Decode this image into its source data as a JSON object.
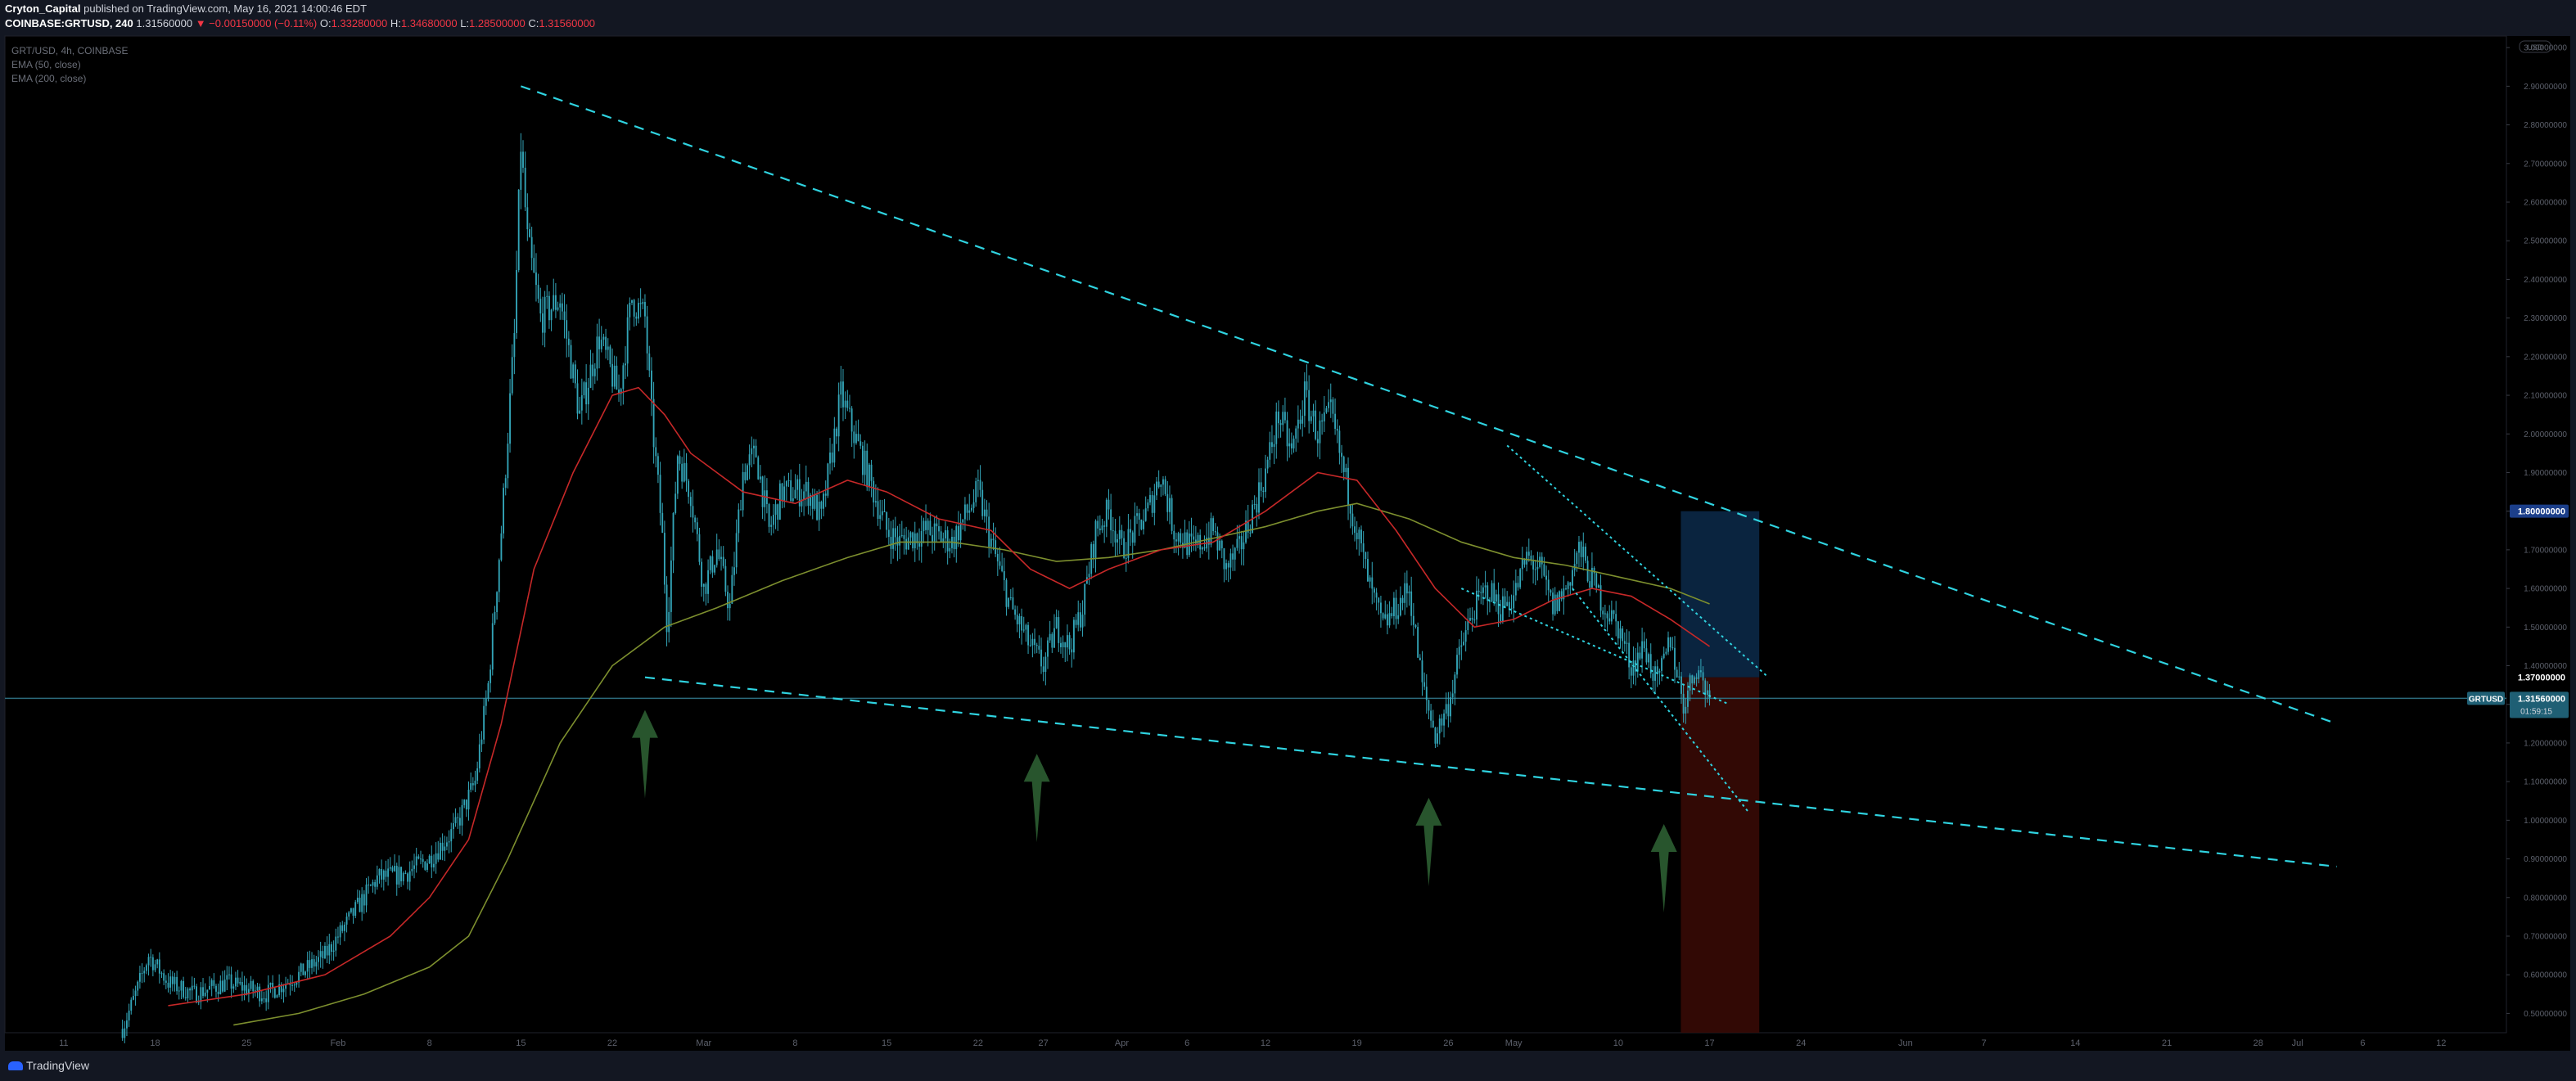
{
  "header": {
    "author": "Cryton_Capital",
    "published_text": "published on TradingView.com, May 16, 2021 14:00:46 EDT",
    "symbol": "COINBASE:GRTUSD, 240",
    "last_price": "1.31560000",
    "change": "▼ −0.00150000 (−0.11%)",
    "ohlc": [
      {
        "label": "O:",
        "value": "1.33280000"
      },
      {
        "label": "H:",
        "value": "1.34680000"
      },
      {
        "label": "L:",
        "value": "1.28500000"
      },
      {
        "label": "C:",
        "value": "1.31560000"
      }
    ]
  },
  "legend": {
    "symbol_line": "GRT/USD, 4h, COINBASE",
    "ema50": "EMA (50, close)",
    "ema200": "EMA (200, close)"
  },
  "footer": {
    "brand": "TradingView"
  },
  "colors": {
    "background": "#000000",
    "candle": "#33a5b8",
    "ema50": "#c62828",
    "ema200": "#7d8f2e",
    "trendline": "#2fd3e0",
    "arrow": "#2c5e32",
    "target_zone": "#0c2a4a",
    "stop_zone": "#3b0a06",
    "last_price_tag": "#1f5f74",
    "level_tag": "#1c3f8a"
  },
  "chart_data": {
    "type": "candlestick",
    "title": "GRT/USD, 4h, COINBASE",
    "xlabel": "",
    "ylabel": "",
    "x_tick_labels": [
      "11",
      "18",
      "25",
      "Feb",
      "8",
      "15",
      "22",
      "Mar",
      "8",
      "15",
      "22",
      "27",
      "Apr",
      "6",
      "12",
      "19",
      "26",
      "May",
      "10",
      "17",
      "24",
      "Jun",
      "7",
      "14",
      "21",
      "28",
      "Jul",
      "6",
      "12"
    ],
    "x_tick_positions_days": [
      0,
      7,
      14,
      21,
      28,
      35,
      42,
      49,
      56,
      63,
      70,
      75,
      81,
      86,
      92,
      99,
      106,
      111,
      119,
      126,
      133,
      141,
      147,
      154,
      161,
      168,
      171,
      176,
      182
    ],
    "y_tick_labels": [
      "0.50000000",
      "0.60000000",
      "0.70000000",
      "0.80000000",
      "0.90000000",
      "1.00000000",
      "1.10000000",
      "1.20000000",
      "1.30000000",
      "1.40000000",
      "1.50000000",
      "1.60000000",
      "1.70000000",
      "1.80000000",
      "1.90000000",
      "2.00000000",
      "2.10000000",
      "2.20000000",
      "2.30000000",
      "2.40000000",
      "2.50000000",
      "2.60000000",
      "2.70000000",
      "2.80000000",
      "2.90000000",
      "3.00000000"
    ],
    "ylim": [
      0.45,
      3.03
    ],
    "xlim_days": [
      -4.5,
      187
    ],
    "price_points": [
      [
        4.5,
        0.46
      ],
      [
        5.5,
        0.55
      ],
      [
        6.5,
        0.65
      ],
      [
        8,
        0.58
      ],
      [
        10,
        0.55
      ],
      [
        12.5,
        0.58
      ],
      [
        15.5,
        0.55
      ],
      [
        18,
        0.6
      ],
      [
        20,
        0.65
      ],
      [
        22,
        0.75
      ],
      [
        24,
        0.85
      ],
      [
        26,
        0.86
      ],
      [
        28,
        0.9
      ],
      [
        30,
        0.98
      ],
      [
        31.5,
        1.1
      ],
      [
        32.5,
        1.35
      ],
      [
        33.5,
        1.75
      ],
      [
        34.5,
        2.25
      ],
      [
        35,
        2.75
      ],
      [
        35.5,
        2.5
      ],
      [
        36.5,
        2.3
      ],
      [
        38,
        2.35
      ],
      [
        39.5,
        2.05
      ],
      [
        41,
        2.25
      ],
      [
        42.5,
        2.1
      ],
      [
        43.5,
        2.35
      ],
      [
        44.5,
        2.3
      ],
      [
        45,
        2.05
      ],
      [
        45.8,
        1.75
      ],
      [
        46.2,
        1.5
      ],
      [
        47,
        1.95
      ],
      [
        48,
        1.85
      ],
      [
        49,
        1.6
      ],
      [
        50,
        1.7
      ],
      [
        51,
        1.55
      ],
      [
        52,
        1.9
      ],
      [
        53,
        1.95
      ],
      [
        54,
        1.75
      ],
      [
        55,
        1.85
      ],
      [
        57,
        1.85
      ],
      [
        58,
        1.78
      ],
      [
        59.5,
        2.1
      ],
      [
        60.5,
        2.0
      ],
      [
        62,
        1.85
      ],
      [
        63,
        1.75
      ],
      [
        64,
        1.72
      ],
      [
        66,
        1.75
      ],
      [
        68,
        1.72
      ],
      [
        70,
        1.85
      ],
      [
        71,
        1.72
      ],
      [
        72.5,
        1.55
      ],
      [
        74,
        1.45
      ],
      [
        75,
        1.4
      ],
      [
        76,
        1.5
      ],
      [
        77,
        1.45
      ],
      [
        78,
        1.55
      ],
      [
        79,
        1.75
      ],
      [
        80,
        1.8
      ],
      [
        81,
        1.7
      ],
      [
        83,
        1.8
      ],
      [
        84,
        1.9
      ],
      [
        85,
        1.75
      ],
      [
        86.5,
        1.7
      ],
      [
        88,
        1.75
      ],
      [
        89,
        1.65
      ],
      [
        90,
        1.7
      ],
      [
        91,
        1.8
      ],
      [
        92,
        1.9
      ],
      [
        93,
        2.05
      ],
      [
        94,
        1.95
      ],
      [
        95,
        2.1
      ],
      [
        96,
        2.0
      ],
      [
        97,
        2.05
      ],
      [
        98,
        1.9
      ],
      [
        99,
        1.75
      ],
      [
        100,
        1.6
      ],
      [
        101,
        1.5
      ],
      [
        102,
        1.55
      ],
      [
        103,
        1.6
      ],
      [
        104,
        1.35
      ],
      [
        105,
        1.22
      ],
      [
        106,
        1.3
      ],
      [
        107,
        1.45
      ],
      [
        108,
        1.55
      ],
      [
        109,
        1.6
      ],
      [
        110,
        1.55
      ],
      [
        111,
        1.58
      ],
      [
        112,
        1.68
      ],
      [
        113,
        1.65
      ],
      [
        114,
        1.55
      ],
      [
        115,
        1.6
      ],
      [
        116,
        1.7
      ],
      [
        117,
        1.62
      ],
      [
        118,
        1.55
      ],
      [
        119,
        1.5
      ],
      [
        120,
        1.4
      ],
      [
        121,
        1.45
      ],
      [
        122,
        1.35
      ],
      [
        123,
        1.47
      ],
      [
        124,
        1.3
      ],
      [
        125,
        1.4
      ],
      [
        126,
        1.3156
      ]
    ],
    "ema50_points": [
      [
        8,
        0.52
      ],
      [
        14,
        0.55
      ],
      [
        20,
        0.6
      ],
      [
        25,
        0.7
      ],
      [
        28,
        0.8
      ],
      [
        31,
        0.95
      ],
      [
        33.5,
        1.25
      ],
      [
        36,
        1.65
      ],
      [
        39,
        1.9
      ],
      [
        42,
        2.1
      ],
      [
        44,
        2.12
      ],
      [
        46,
        2.05
      ],
      [
        48,
        1.95
      ],
      [
        52,
        1.85
      ],
      [
        56,
        1.82
      ],
      [
        60,
        1.88
      ],
      [
        63,
        1.85
      ],
      [
        67,
        1.78
      ],
      [
        71,
        1.75
      ],
      [
        74,
        1.65
      ],
      [
        77,
        1.6
      ],
      [
        80,
        1.65
      ],
      [
        84,
        1.7
      ],
      [
        88,
        1.72
      ],
      [
        92,
        1.8
      ],
      [
        96,
        1.9
      ],
      [
        99,
        1.88
      ],
      [
        102,
        1.75
      ],
      [
        105,
        1.6
      ],
      [
        108,
        1.5
      ],
      [
        111,
        1.52
      ],
      [
        114,
        1.57
      ],
      [
        117,
        1.6
      ],
      [
        120,
        1.58
      ],
      [
        123,
        1.52
      ],
      [
        126,
        1.45
      ]
    ],
    "ema200_points": [
      [
        13,
        0.47
      ],
      [
        18,
        0.5
      ],
      [
        23,
        0.55
      ],
      [
        28,
        0.62
      ],
      [
        31,
        0.7
      ],
      [
        34,
        0.9
      ],
      [
        38,
        1.2
      ],
      [
        42,
        1.4
      ],
      [
        46,
        1.5
      ],
      [
        50,
        1.55
      ],
      [
        55,
        1.62
      ],
      [
        60,
        1.68
      ],
      [
        64,
        1.72
      ],
      [
        68,
        1.72
      ],
      [
        72,
        1.7
      ],
      [
        76,
        1.67
      ],
      [
        80,
        1.68
      ],
      [
        84,
        1.7
      ],
      [
        88,
        1.73
      ],
      [
        92,
        1.76
      ],
      [
        96,
        1.8
      ],
      [
        99,
        1.82
      ],
      [
        103,
        1.78
      ],
      [
        107,
        1.72
      ],
      [
        111,
        1.68
      ],
      [
        115,
        1.66
      ],
      [
        119,
        1.63
      ],
      [
        123,
        1.6
      ],
      [
        126,
        1.56
      ]
    ],
    "trendlines": [
      {
        "style": "dashed",
        "points": [
          [
            35,
            2.9
          ],
          [
            174,
            1.25
          ]
        ]
      },
      {
        "style": "dashed",
        "points": [
          [
            44.5,
            1.37
          ],
          [
            174,
            0.88
          ]
        ]
      },
      {
        "style": "dotted",
        "points": [
          [
            110.5,
            1.97
          ],
          [
            130.5,
            1.37
          ]
        ]
      },
      {
        "style": "dotted",
        "points": [
          [
            107,
            1.6
          ],
          [
            127.5,
            1.3
          ]
        ]
      },
      {
        "style": "dotted",
        "points": [
          [
            115.5,
            1.6
          ],
          [
            129,
            1.02
          ]
        ]
      }
    ],
    "arrows_days": [
      44.5,
      74.5,
      104.5,
      122.5
    ],
    "target_zone": {
      "x_days": [
        123.8,
        129.8
      ],
      "y": [
        1.37,
        1.8
      ]
    },
    "stop_zone": {
      "x_days": [
        123.8,
        129.8
      ],
      "y": [
        0.45,
        1.37
      ]
    },
    "horizontal_line": 1.3156,
    "labeled_levels": [
      {
        "price": 1.8,
        "label": "1.80000000"
      },
      {
        "price": 1.37,
        "label": "1.37000000"
      }
    ],
    "last_price": {
      "price": 1.3156,
      "symbol": "GRTUSD",
      "label": "1.31560000",
      "countdown": "01:59:15"
    }
  }
}
